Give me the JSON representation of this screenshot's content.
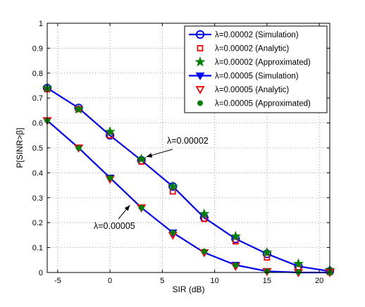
{
  "chart_data": {
    "type": "line",
    "xlabel": "SIR (dB)",
    "ylabel": "P[SINR>β]",
    "xlim": [
      -6,
      21
    ],
    "ylim": [
      0,
      1
    ],
    "xticks": [
      -5,
      0,
      5,
      10,
      15,
      20
    ],
    "yticks": [
      0,
      0.1,
      0.2,
      0.3,
      0.4,
      0.5,
      0.6,
      0.7,
      0.8,
      0.9,
      1
    ],
    "grid": true,
    "legend_position": "top-right",
    "series": [
      {
        "name": "λ=0.00002 (Simulation)",
        "marker": "circle-open",
        "line": true,
        "color": "#0000ff",
        "x": [
          -6,
          -3,
          0,
          3,
          6,
          9,
          12,
          15,
          18,
          21
        ],
        "y": [
          0.74,
          0.66,
          0.55,
          0.45,
          0.345,
          0.22,
          0.135,
          0.075,
          0.025,
          0.005
        ]
      },
      {
        "name": "λ=0.00002 (Analytic)",
        "marker": "square-open",
        "line": false,
        "color": "#ff0000",
        "x": [
          -6,
          -3,
          0,
          3,
          6,
          9,
          12,
          15,
          18,
          21
        ],
        "y": [
          0.735,
          0.655,
          0.55,
          0.445,
          0.325,
          0.215,
          0.125,
          0.06,
          0.015,
          0.002
        ]
      },
      {
        "name": "λ=0.00002 (Approximated)",
        "marker": "star-filled",
        "line": false,
        "color": "#008000",
        "x": [
          -6,
          -3,
          0,
          3,
          6,
          9,
          12,
          15,
          18,
          21
        ],
        "y": [
          0.74,
          0.655,
          0.565,
          0.455,
          0.345,
          0.235,
          0.145,
          0.08,
          0.035,
          0.01
        ]
      },
      {
        "name": "λ=0.00005 (Simulation)",
        "marker": "triangle-down-filled",
        "line": true,
        "color": "#0000ff",
        "x": [
          -6,
          -3,
          0,
          3,
          6,
          9,
          12,
          15,
          18,
          21
        ],
        "y": [
          0.61,
          0.5,
          0.38,
          0.26,
          0.16,
          0.08,
          0.03,
          0.005,
          0.0,
          0.0
        ]
      },
      {
        "name": "λ=0.00005 (Analytic)",
        "marker": "triangle-down-open",
        "line": false,
        "color": "#ff0000",
        "x": [
          -6,
          -3,
          0,
          3,
          6,
          9,
          12,
          15,
          18,
          21
        ],
        "y": [
          0.61,
          0.5,
          0.375,
          0.26,
          0.15,
          0.08,
          0.025,
          0.004,
          0.0,
          0.0
        ]
      },
      {
        "name": "λ=0.00005 (Approximated)",
        "marker": "dot-filled",
        "line": false,
        "color": "#008000",
        "x": [
          -6,
          -3,
          0,
          3,
          6,
          9,
          12,
          15,
          18,
          21
        ],
        "y": [
          0.61,
          0.5,
          0.38,
          0.26,
          0.16,
          0.085,
          0.03,
          0.005,
          0.002,
          0.0
        ]
      }
    ],
    "annotations": [
      {
        "text": "λ=0.00002",
        "arrow_to": [
          3,
          0.45
        ]
      },
      {
        "text": "λ=0.00005",
        "arrow_to": [
          1.5,
          0.29
        ]
      }
    ]
  }
}
